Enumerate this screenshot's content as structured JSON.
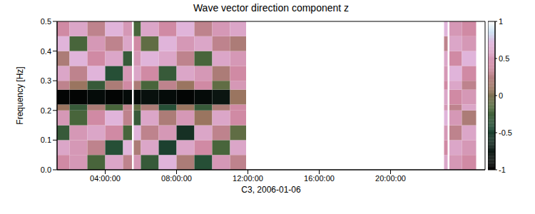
{
  "chart_data": {
    "type": "heatmap",
    "title": "Wave vector direction component z",
    "x_label": "C3, 2006-01-06",
    "y_label": "Frequency [Hz]",
    "xlim": [
      1.3,
      25.3
    ],
    "xticks": [
      {
        "value": 4,
        "label": "04:00:00"
      },
      {
        "value": 8,
        "label": "08:00:00"
      },
      {
        "value": 12,
        "label": "12:00:00"
      },
      {
        "value": 16,
        "label": "16:00:00"
      },
      {
        "value": 20,
        "label": "20:00:00"
      }
    ],
    "ylim": [
      0,
      0.5
    ],
    "yticks": [
      {
        "value": 0,
        "label": "0.0"
      },
      0.1,
      0.2,
      0.3,
      0.4,
      0.5
    ],
    "cells": {
      "x_edges": [
        1.3,
        2,
        3,
        4,
        5,
        5.5,
        5.6,
        6,
        7,
        8,
        9,
        10,
        11,
        11.9,
        23,
        23.2,
        23.3,
        24,
        24.8
      ],
      "y_edges": [
        0,
        0.05,
        0.1,
        0.15,
        0.2,
        0.22,
        0.27,
        0.3,
        0.35,
        0.4,
        0.45,
        0.5
      ],
      "values": [
        [
          0.4,
          0.5,
          -0.2,
          0.6,
          0.3,
          null,
          0.5,
          -0.3,
          0.7,
          0.2,
          -0.4,
          0.5,
          0.3,
          null,
          0.6,
          null,
          0.5,
          0.4
        ],
        [
          0.6,
          0.5,
          0.3,
          -0.4,
          0.7,
          null,
          0.2,
          0.6,
          -0.5,
          0.6,
          0.4,
          -0.2,
          0.6,
          null,
          0.4,
          null,
          0.6,
          0.5
        ],
        [
          -0.3,
          0.5,
          0.6,
          0.4,
          -0.2,
          null,
          0.7,
          0.3,
          0.5,
          -0.6,
          0.6,
          0.3,
          -0.1,
          null,
          0.5,
          null,
          0.3,
          0.6
        ],
        [
          0.5,
          -0.2,
          0.4,
          0.7,
          0.3,
          null,
          -0.3,
          0.6,
          0.2,
          0.5,
          0.1,
          0.6,
          0.4,
          null,
          0.7,
          null,
          0.5,
          0.2
        ],
        [
          0.1,
          -0.3,
          0.2,
          -0.2,
          0.3,
          null,
          -0.1,
          0.2,
          -0.4,
          0.1,
          -0.3,
          0.2,
          0.4,
          null,
          0.5,
          null,
          0.3,
          0.6
        ],
        [
          -0.95,
          -0.95,
          -0.9,
          -0.95,
          -0.9,
          null,
          -0.9,
          -0.85,
          -0.9,
          -0.95,
          -0.9,
          -0.8,
          0.1,
          null,
          0.6,
          null,
          0.4,
          0.5
        ],
        [
          0.3,
          0.1,
          -0.3,
          0.2,
          0.4,
          null,
          0.2,
          -0.2,
          0.3,
          0.1,
          0.4,
          -0.1,
          0.5,
          null,
          0.4,
          null,
          0.6,
          0.3
        ],
        [
          0.6,
          0.3,
          0.7,
          -0.4,
          0.5,
          null,
          0.6,
          0.4,
          -0.3,
          0.6,
          0.5,
          0.2,
          0.4,
          null,
          0.5,
          null,
          0.7,
          0.4
        ],
        [
          0.2,
          0.7,
          0.4,
          0.6,
          -0.3,
          null,
          0.5,
          0.7,
          0.6,
          0.3,
          -0.2,
          0.6,
          0.5,
          null,
          0.6,
          null,
          0.4,
          0.7
        ],
        [
          0.7,
          -0.2,
          0.5,
          0.3,
          0.6,
          null,
          0.4,
          -0.1,
          0.7,
          0.5,
          0.6,
          0.3,
          0.2,
          null,
          0.3,
          null,
          0.6,
          0.5
        ],
        [
          0.4,
          0.6,
          0.3,
          0.7,
          0.5,
          null,
          -0.2,
          0.6,
          0.4,
          0.7,
          0.3,
          0.5,
          0.6,
          null,
          0.7,
          null,
          0.5,
          0.4
        ]
      ]
    },
    "colorbar": {
      "range": [
        -1,
        1
      ],
      "ticks": [
        -1,
        -0.5,
        0,
        0.5,
        1
      ]
    }
  }
}
